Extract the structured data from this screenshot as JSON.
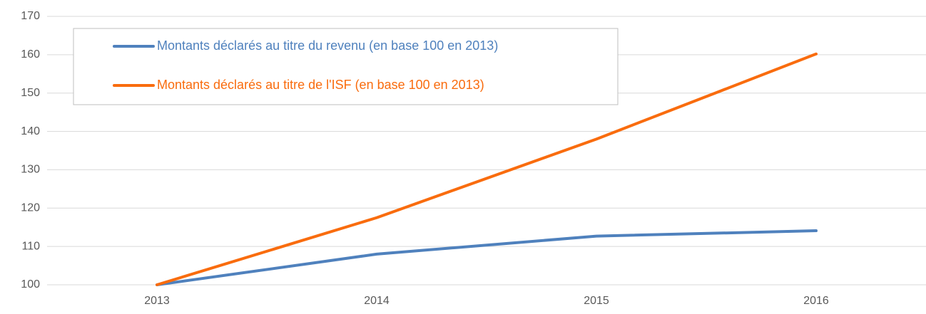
{
  "chart_data": {
    "type": "line",
    "categories": [
      "2013",
      "2014",
      "2015",
      "2016"
    ],
    "series": [
      {
        "name": "Montants déclarés au titre du revenu (en base 100 en 2013)",
        "color": "#4f81bd",
        "values": [
          100,
          108,
          112.7,
          114.1
        ]
      },
      {
        "name": "Montants déclarés au titre de l'ISF (en base 100 en 2013)",
        "color": "#f96c0e",
        "values": [
          100,
          117.5,
          138,
          160.2
        ]
      }
    ],
    "ylim": [
      100,
      170
    ],
    "yticks": [
      100,
      110,
      120,
      130,
      140,
      150,
      160,
      170
    ],
    "grid": true,
    "legend": "upper left"
  }
}
